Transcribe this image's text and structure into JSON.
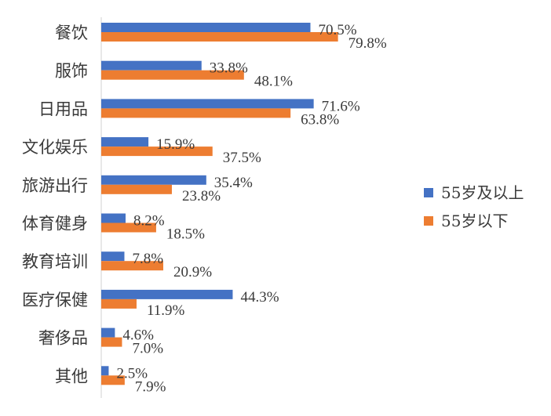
{
  "chart_data": {
    "type": "bar",
    "orientation": "horizontal",
    "categories": [
      "餐饮",
      "服饰",
      "日用品",
      "文化娱乐",
      "旅游出行",
      "体育健身",
      "教育培训",
      "医疗保健",
      "奢侈品",
      "其他"
    ],
    "series": [
      {
        "name": "55岁及以上",
        "color": "#4472C4",
        "values": [
          70.5,
          33.8,
          71.6,
          15.9,
          35.4,
          8.2,
          7.8,
          44.3,
          4.6,
          2.5
        ],
        "labels": [
          "70.5%",
          "33.8%",
          "71.6%",
          "15.9%",
          "35.4%",
          "8.2%",
          "7.8%",
          "44.3%",
          "4.6%",
          "2.5%"
        ]
      },
      {
        "name": "55岁以下",
        "color": "#ED7D31",
        "values": [
          79.8,
          48.1,
          63.8,
          37.5,
          23.8,
          18.5,
          20.9,
          11.9,
          7.0,
          7.9
        ],
        "labels": [
          "79.8%",
          "48.1%",
          "63.8%",
          "37.5%",
          "23.8%",
          "18.5%",
          "20.9%",
          "11.9%",
          "7.0%",
          "7.9%"
        ]
      }
    ],
    "xlim": [
      0,
      100
    ],
    "unit": "%",
    "grid": false,
    "legend_position": "right"
  }
}
